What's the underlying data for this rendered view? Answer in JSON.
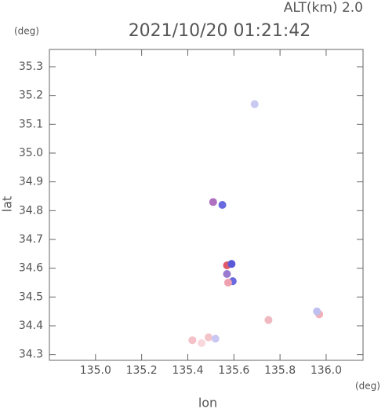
{
  "chart_data": {
    "type": "scatter",
    "title": "2021/10/20 01:21:42",
    "subtitle": "ALT(km) 2.0",
    "y_unit": "(deg)",
    "x_unit": "(deg)",
    "xlabel": "lon",
    "ylabel": "lat",
    "x": [
      135.69,
      135.51,
      135.55,
      135.57,
      135.59,
      135.57,
      135.595,
      135.575,
      135.75,
      135.97,
      135.96,
      135.42,
      135.46,
      135.49,
      135.52
    ],
    "y": [
      35.17,
      34.83,
      34.82,
      34.61,
      34.615,
      34.58,
      34.555,
      34.55,
      34.42,
      34.44,
      34.45,
      34.35,
      34.34,
      34.36,
      34.355
    ],
    "colors": [
      "#c9c9f2",
      "#b070c0",
      "#6a6ae0",
      "#e05a6a",
      "#5a5ad8",
      "#9a7ad0",
      "#6a6ae0",
      "#f0a0b0",
      "#f0b8c0",
      "#f0b0b8",
      "#c0c0f0",
      "#f5c0c8",
      "#f8d8dc",
      "#f2c4ca",
      "#c8c8f2"
    ],
    "xlim": [
      134.8,
      136.16
    ],
    "ylim": [
      34.28,
      35.36
    ],
    "xticks": [
      {
        "value": 135,
        "label": "135.0"
      },
      135.2,
      135.4,
      135.6,
      135.8,
      {
        "value": 136,
        "label": "136.0"
      }
    ],
    "yticks": [
      34.3,
      34.4,
      34.5,
      34.6,
      34.7,
      34.8,
      34.9,
      {
        "value": 35,
        "label": "35.0"
      },
      35.1,
      35.2,
      35.3
    ]
  }
}
